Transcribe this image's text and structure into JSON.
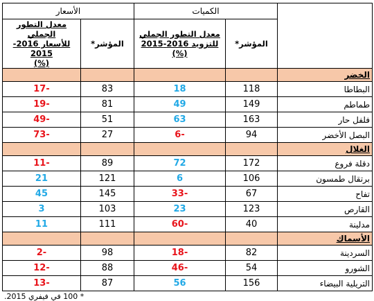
{
  "headers": {
    "quantities": "الكميات",
    "prices": "الأسعار",
    "index": "المؤشر*",
    "supply_rate": [
      "معدل التطور الجملي",
      "للتزويد 2016-2015",
      "(%)"
    ],
    "price_rate": [
      "معدل التطور الجملي",
      "للأسعار 2016-2015",
      "(%)"
    ]
  },
  "categories": [
    {
      "name": "الخضر",
      "rows": [
        {
          "name": "البطاطا",
          "q_index": "118",
          "q_rate": "18",
          "p_index": "83",
          "p_rate": "-17"
        },
        {
          "name": "طماطم",
          "q_index": "149",
          "q_rate": "49",
          "p_index": "81",
          "p_rate": "-19"
        },
        {
          "name": "فلفل حار",
          "q_index": "163",
          "q_rate": "63",
          "p_index": "51",
          "p_rate": "-49"
        },
        {
          "name": "البصل الأخضر",
          "q_index": "94",
          "q_rate": "-6",
          "p_index": "27",
          "p_rate": "-73"
        }
      ]
    },
    {
      "name": "الغلال",
      "rows": [
        {
          "name": "دقلة فروع",
          "q_index": "172",
          "q_rate": "72",
          "p_index": "89",
          "p_rate": "-11"
        },
        {
          "name": "برتقال طمسون",
          "q_index": "106",
          "q_rate": "6",
          "p_index": "121",
          "p_rate": "21"
        },
        {
          "name": "تفاح",
          "q_index": "67",
          "q_rate": "-33",
          "p_index": "145",
          "p_rate": "45"
        },
        {
          "name": "القارص",
          "q_index": "123",
          "q_rate": "23",
          "p_index": "103",
          "p_rate": "3"
        },
        {
          "name": "مدلينة",
          "q_index": "40",
          "q_rate": "-60",
          "p_index": "111",
          "p_rate": "11"
        }
      ]
    },
    {
      "name": "الأسماك",
      "rows": [
        {
          "name": "السردينة",
          "q_index": "82",
          "q_rate": "-18",
          "p_index": "98",
          "p_rate": "-2"
        },
        {
          "name": "الشورو",
          "q_index": "54",
          "q_rate": "-46",
          "p_index": "88",
          "p_rate": "-12"
        },
        {
          "name": "التريلية البيضاء",
          "q_index": "156",
          "q_rate": "56",
          "p_index": "87",
          "p_rate": "-13"
        }
      ]
    }
  ],
  "footnote": "* 100 في فيفري 2015.",
  "colors": {
    "positive": "#22a9e6",
    "negative": "#e8141b",
    "category_bg": "#f7c8a9"
  }
}
